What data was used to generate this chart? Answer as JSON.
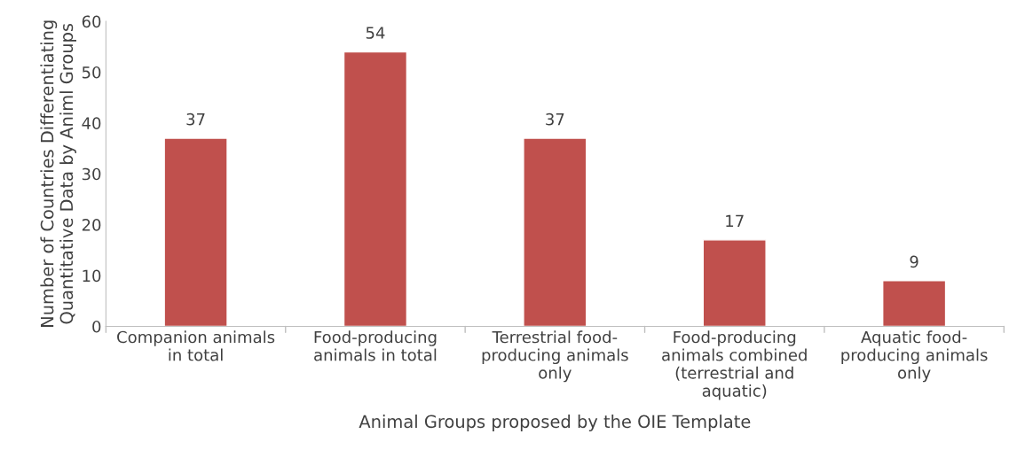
{
  "chart_data": {
    "type": "bar",
    "categories": [
      "Companion animals\nin total",
      "Food-producing\nanimals in total",
      "Terrestrial food-\nproducing animals\nonly",
      "Food-producing\nanimals combined\n(terrestrial and\naquatic)",
      "Aquatic food-\nproducing animals\nonly"
    ],
    "values": [
      37,
      54,
      37,
      17,
      9
    ],
    "color": "#c0504d",
    "xlabel": "Animal Groups proposed by the OIE Template",
    "ylabel": "Number of Countries Differentiating\nQuantitative Data by Animl Groups",
    "ylim": [
      0,
      60
    ],
    "yticks": [
      0,
      10,
      20,
      30,
      40,
      50,
      60
    ],
    "data_labels": true,
    "grid": false,
    "legend": false
  }
}
